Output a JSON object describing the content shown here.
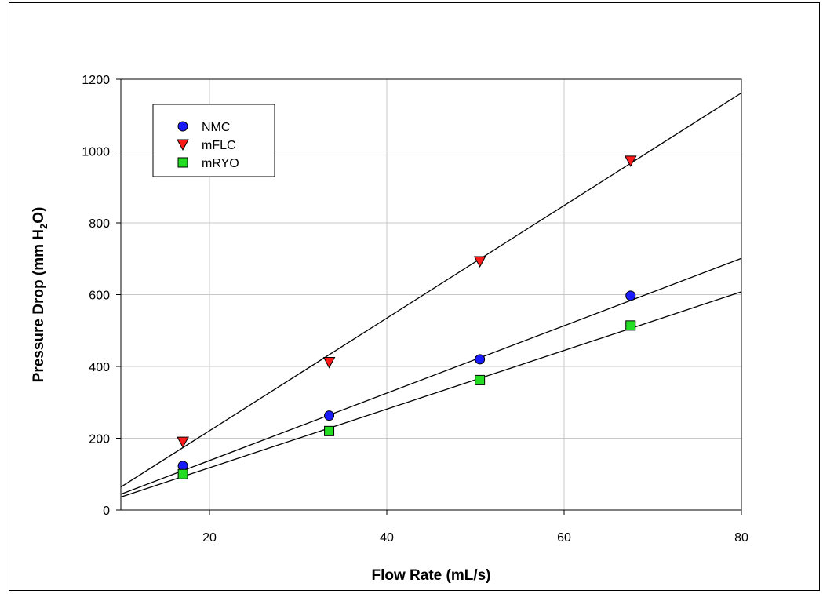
{
  "chart_data": {
    "type": "scatter",
    "xlabel": "Flow Rate (mL/s)",
    "ylabel": {
      "prefix": "Pressure Drop (mm H",
      "sub": "2",
      "suffix": "O)"
    },
    "xlim": [
      10,
      80
    ],
    "ylim": [
      0,
      1200
    ],
    "x_ticks": [
      20,
      40,
      60,
      80
    ],
    "y_ticks": [
      0,
      200,
      400,
      600,
      800,
      1000,
      1200
    ],
    "grid": true,
    "legend_position": "top-left",
    "series": [
      {
        "name": "NMC",
        "marker": "circle",
        "color": "#1a1aff",
        "x": [
          17,
          33.5,
          50.5,
          67.5
        ],
        "y": [
          123,
          263,
          420,
          597
        ],
        "fit": {
          "x": [
            10,
            80
          ],
          "y": [
            44,
            701
          ]
        }
      },
      {
        "name": "mFLC",
        "marker": "triangle-down",
        "color": "#ff1a1a",
        "x": [
          17,
          33.5,
          50.5,
          67.5
        ],
        "y": [
          190,
          412,
          693,
          973
        ],
        "fit": {
          "x": [
            10,
            80
          ],
          "y": [
            64,
            1162
          ]
        }
      },
      {
        "name": "mRYO",
        "marker": "square",
        "color": "#22dd22",
        "x": [
          17,
          33.5,
          50.5,
          67.5
        ],
        "y": [
          100,
          220,
          362,
          514
        ],
        "fit": {
          "x": [
            10,
            80
          ],
          "y": [
            36,
            608
          ]
        }
      }
    ]
  }
}
